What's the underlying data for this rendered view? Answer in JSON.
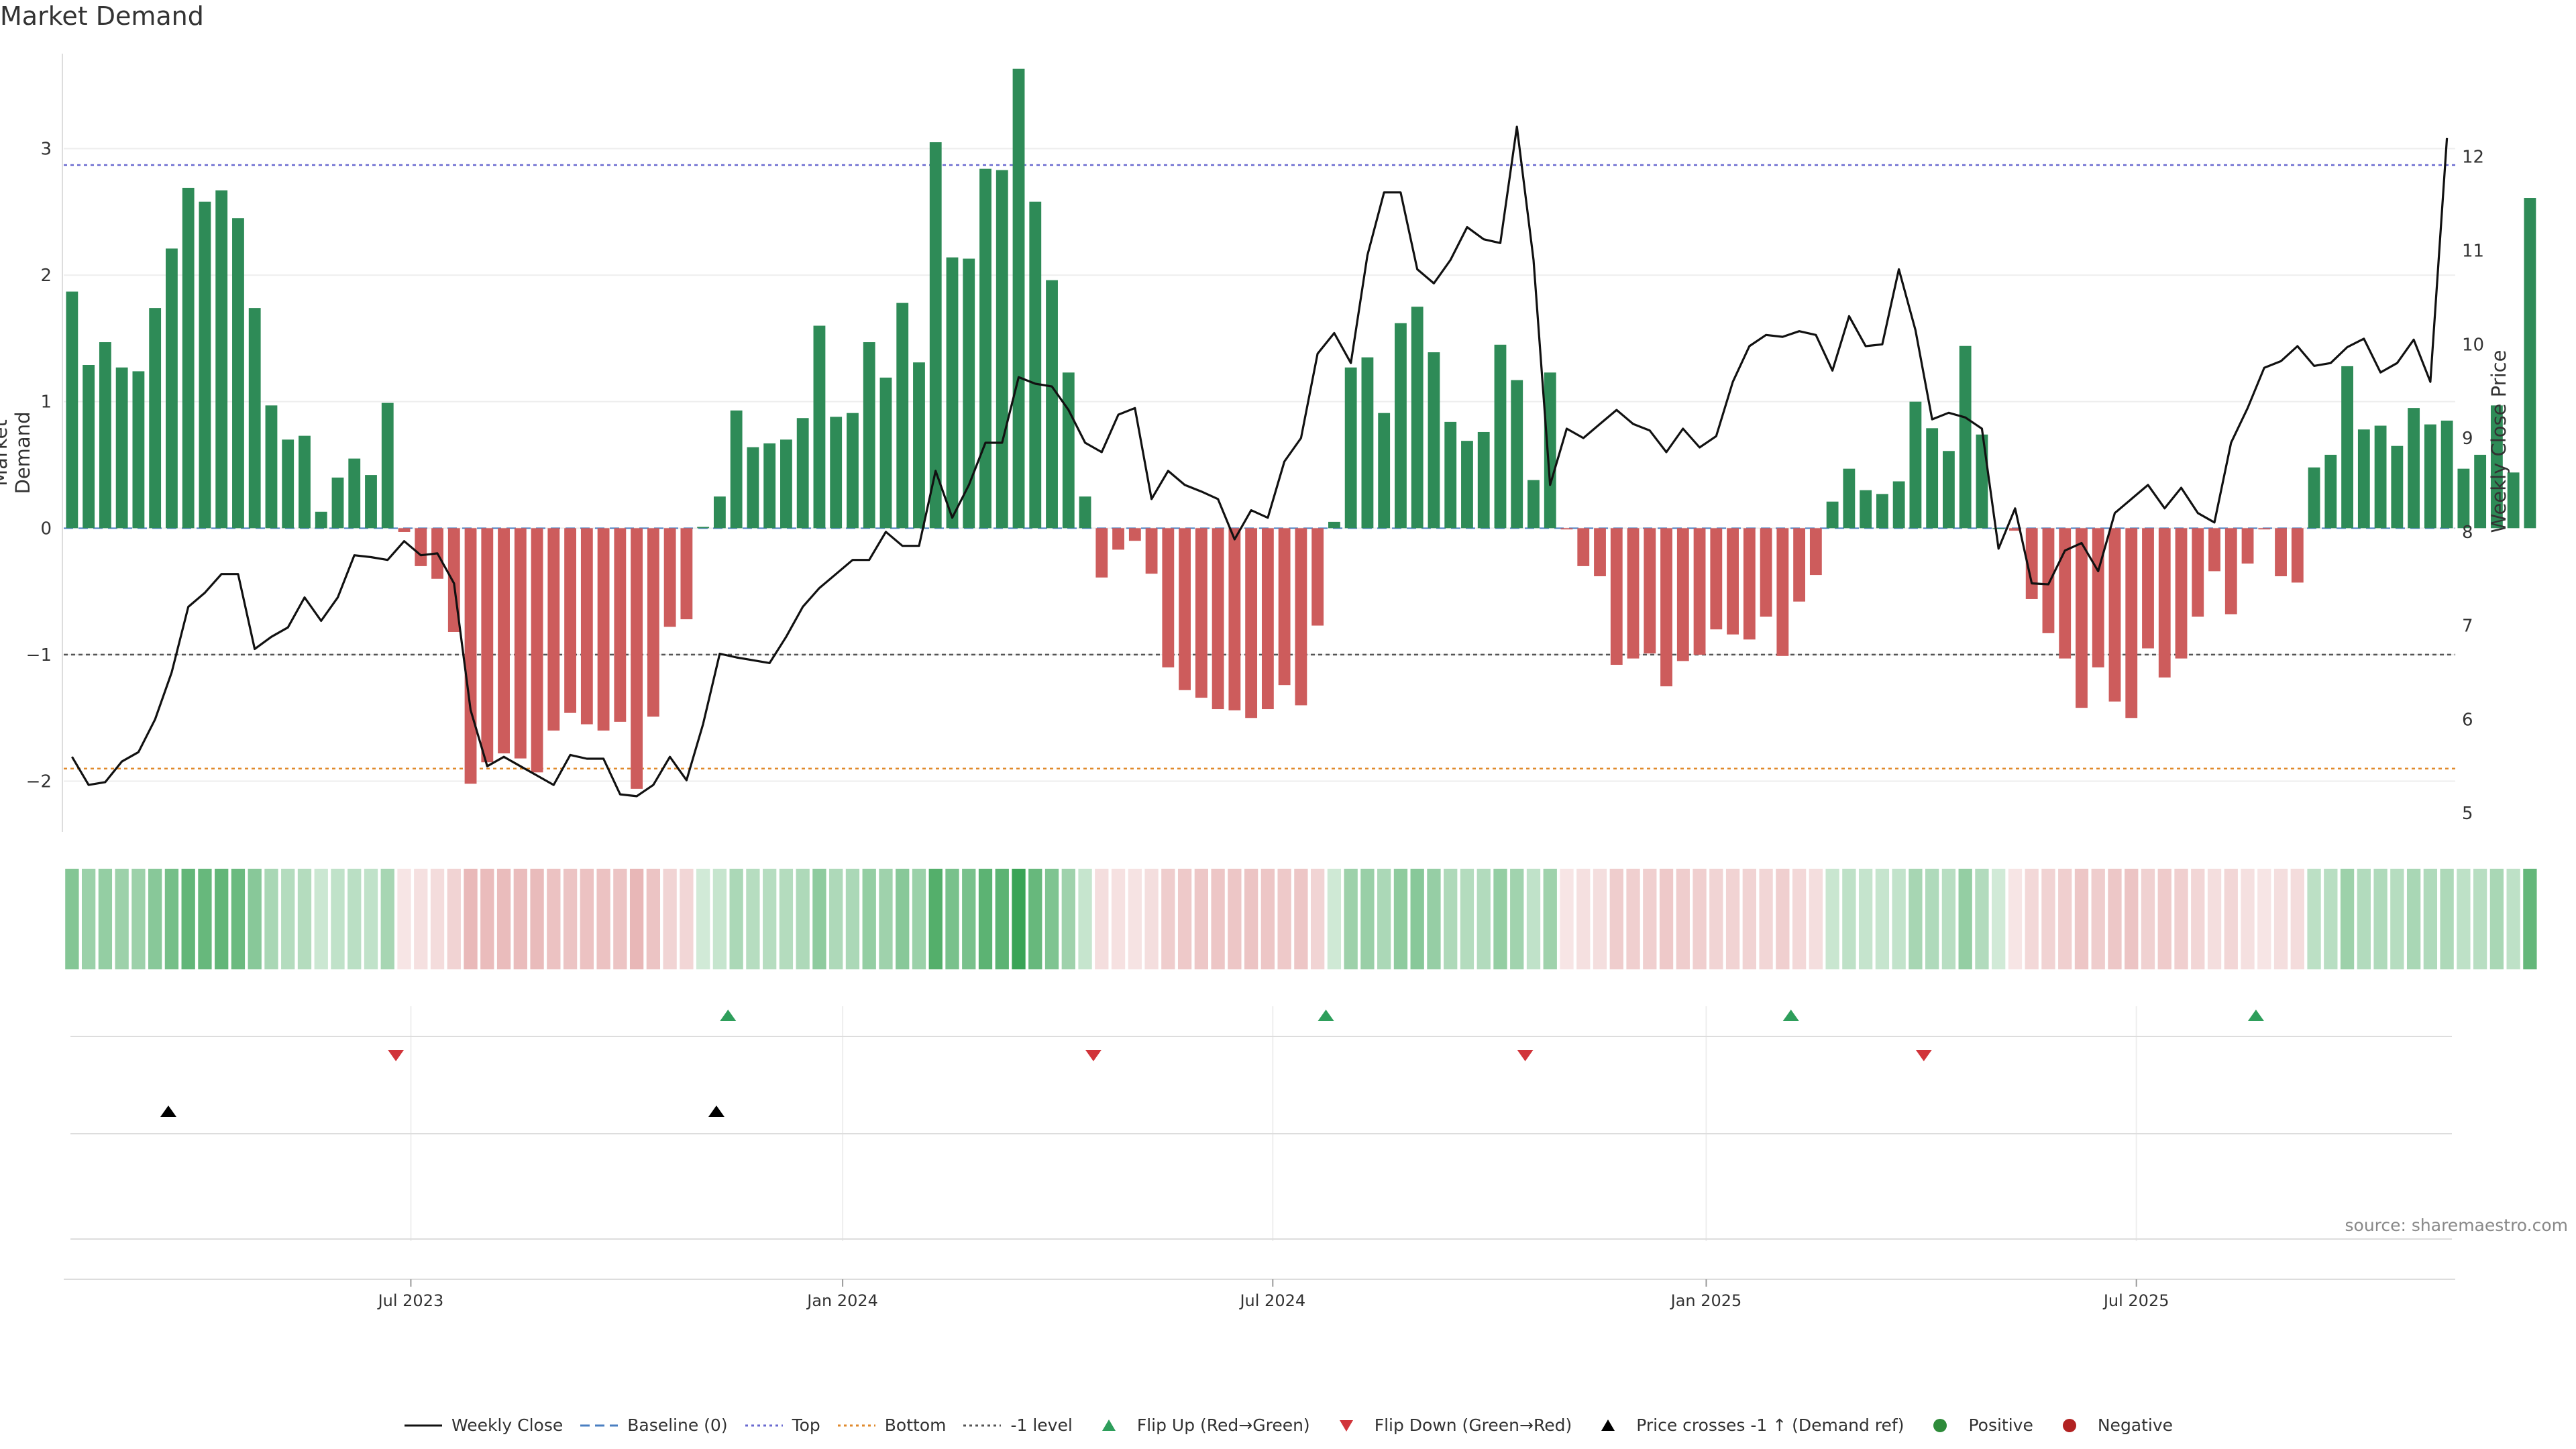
{
  "chart_data": {
    "type": "bar",
    "title": "Market Demand",
    "source": "source: sharemaestro.com",
    "ylabel": "Market Demand",
    "ylabel_right": "Weekly Close Price",
    "ylim": [
      -2.4,
      3.75
    ],
    "ylim_right": [
      4.8,
      13.1
    ],
    "yticks": [
      "3",
      "2",
      "1",
      "0",
      "−1",
      "−2"
    ],
    "yticks_values": [
      3,
      2,
      1,
      0,
      -1,
      -2
    ],
    "yticks_right": [
      "12",
      "11",
      "10",
      "9",
      "8",
      "7",
      "6",
      "5"
    ],
    "yticks_right_values": [
      12,
      11,
      10,
      9,
      8,
      7,
      6,
      5
    ],
    "reference_lines": {
      "top": 2.87,
      "bottom": -1.9,
      "minus_one": -1,
      "baseline": 0
    },
    "x_tick_labels": [
      "Jul 2023",
      "Jan 2024",
      "Jul 2024",
      "Jan 2025",
      "Jul 2025"
    ],
    "x_tick_weeks": [
      20.4,
      46.4,
      72.3,
      98.4,
      124.3
    ],
    "weeks": 144,
    "demand": [
      1.87,
      1.29,
      1.47,
      1.27,
      1.24,
      1.74,
      2.21,
      2.69,
      2.58,
      2.67,
      2.45,
      1.74,
      0.97,
      0.7,
      0.73,
      0.13,
      0.4,
      0.55,
      0.42,
      0.99,
      -0.03,
      -0.3,
      -0.4,
      -0.82,
      -2.02,
      -1.85,
      -1.78,
      -1.82,
      -1.93,
      -1.6,
      -1.46,
      -1.55,
      -1.6,
      -1.53,
      -2.06,
      -1.49,
      -0.78,
      -0.72,
      0.01,
      0.25,
      0.93,
      0.64,
      0.67,
      0.7,
      0.87,
      1.6,
      0.88,
      0.91,
      1.47,
      1.19,
      1.78,
      1.31,
      3.05,
      2.14,
      2.13,
      2.84,
      2.83,
      3.63,
      2.58,
      1.96,
      1.23,
      0.25,
      -0.39,
      -0.17,
      -0.1,
      -0.36,
      -1.1,
      -1.28,
      -1.34,
      -1.43,
      -1.44,
      -1.5,
      -1.43,
      -1.24,
      -1.4,
      -0.77,
      0.05,
      1.27,
      1.35,
      0.91,
      1.62,
      1.75,
      1.39,
      0.84,
      0.69,
      0.76,
      1.45,
      1.17,
      0.38,
      1.23,
      -0.01,
      -0.3,
      -0.38,
      -1.08,
      -1.03,
      -0.99,
      -1.25,
      -1.05,
      -1.0,
      -0.8,
      -0.84,
      -0.88,
      -0.7,
      -1.01,
      -0.58,
      -0.37,
      0.21,
      0.47,
      0.3,
      0.27,
      0.37,
      1.0,
      0.79,
      0.61,
      1.44,
      0.74,
      0.0,
      -0.02,
      -0.56,
      -0.83,
      -1.03,
      -1.42,
      -1.1,
      -1.37,
      -1.5,
      -0.95,
      -1.18,
      -1.03,
      -0.7,
      -0.34,
      -0.68,
      -0.28,
      -0.01,
      -0.38,
      -0.43,
      0.48,
      0.58,
      1.28,
      0.78,
      0.81,
      0.65,
      0.95,
      0.82,
      0.85,
      0.47,
      0.58,
      0.97,
      0.44,
      2.61
    ],
    "close": [
      5.6,
      5.3,
      5.33,
      5.55,
      5.65,
      6.0,
      6.5,
      7.2,
      7.35,
      7.55,
      7.55,
      6.75,
      6.88,
      6.98,
      7.3,
      7.05,
      7.3,
      7.75,
      7.73,
      7.7,
      7.9,
      7.75,
      7.77,
      7.45,
      6.1,
      5.5,
      5.6,
      5.5,
      5.4,
      5.3,
      5.62,
      5.58,
      5.58,
      5.2,
      5.18,
      5.3,
      5.6,
      5.35,
      5.95,
      6.7,
      6.66,
      6.63,
      6.6,
      6.88,
      7.2,
      7.4,
      7.55,
      7.7,
      7.7,
      8.0,
      7.85,
      7.85,
      8.65,
      8.15,
      8.5,
      8.95,
      8.95,
      9.65,
      9.58,
      9.55,
      9.3,
      8.95,
      8.85,
      9.25,
      9.32,
      8.35,
      8.65,
      8.5,
      8.43,
      8.35,
      7.92,
      8.23,
      8.15,
      8.75,
      9.0,
      9.9,
      10.12,
      9.8,
      10.95,
      11.62,
      11.62,
      10.8,
      10.65,
      10.9,
      11.25,
      11.12,
      11.08,
      12.32,
      10.9,
      8.5,
      9.1,
      9.0,
      9.15,
      9.3,
      9.15,
      9.08,
      8.85,
      9.1,
      8.9,
      9.02,
      9.6,
      9.98,
      10.1,
      10.08,
      10.14,
      10.1,
      9.72,
      10.3,
      9.98,
      10.0,
      10.8,
      10.15,
      9.2,
      9.27,
      9.22,
      9.1,
      7.82,
      8.25,
      7.45,
      7.44,
      7.8,
      7.88,
      7.58,
      8.2,
      8.35,
      8.5,
      8.25,
      8.47,
      8.2,
      8.1,
      8.95,
      9.32,
      9.75,
      9.82,
      9.98,
      9.77,
      9.8,
      9.97,
      10.06,
      9.7,
      9.8,
      10.05,
      9.6,
      12.2
    ],
    "flip_up_weeks": [
      39.5,
      75.5,
      103.5,
      131.5
    ],
    "flip_down_weeks": [
      19.5,
      61.5,
      87.5,
      111.5
    ],
    "price_cross_weeks": [
      5.8,
      38.8
    ],
    "legend": [
      {
        "label": "Weekly Close",
        "kind": "line",
        "color": "#111111"
      },
      {
        "label": "Baseline (0)",
        "kind": "dash",
        "color": "#4a7fc1"
      },
      {
        "label": "Top",
        "kind": "dot",
        "color": "#6a6ad0"
      },
      {
        "label": "Bottom",
        "kind": "dot",
        "color": "#e08a2c"
      },
      {
        "label": "-1 level",
        "kind": "dot",
        "color": "#555555"
      },
      {
        "label": "Flip Up (Red→Green)",
        "kind": "tri-up",
        "color": "#2e9e5b"
      },
      {
        "label": "Flip Down (Green→Red)",
        "kind": "tri-down",
        "color": "#d1343a"
      },
      {
        "label": "Price crosses -1 ↑ (Demand ref)",
        "kind": "tri-up",
        "color": "#000000"
      },
      {
        "label": "Positive",
        "kind": "dot-marker",
        "color": "#2e8b3a"
      },
      {
        "label": "Negative",
        "kind": "dot-marker",
        "color": "#b22222"
      }
    ],
    "colors": {
      "positive": "#2e8b57",
      "negative": "#cd5c5c",
      "price": "#111111",
      "top": "#6a6ad0",
      "bottom": "#e08a2c",
      "minus_one": "#555555",
      "flip_up": "#2e9e5b",
      "flip_down": "#d1343a",
      "cross": "#000000"
    }
  }
}
